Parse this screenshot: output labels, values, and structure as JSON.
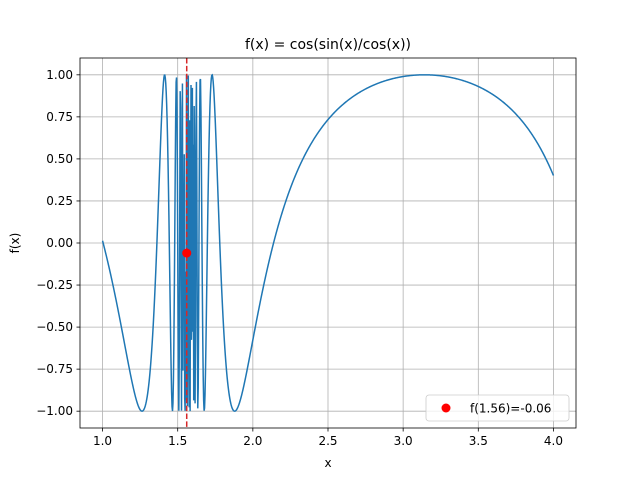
{
  "chart_data": {
    "type": "line",
    "title": "f(x) = cos(sin(x)/cos(x))",
    "xlabel": "x",
    "ylabel": "f(x)",
    "xlim": [
      0.85,
      4.15
    ],
    "ylim": [
      -1.1,
      1.1
    ],
    "grid": true,
    "x_ticks": [
      1.0,
      1.5,
      2.0,
      2.5,
      3.0,
      3.5,
      4.0
    ],
    "x_tick_labels": [
      "1.0",
      "1.5",
      "2.0",
      "2.5",
      "3.0",
      "3.5",
      "4.0"
    ],
    "y_ticks": [
      -1.0,
      -0.75,
      -0.5,
      -0.25,
      0.0,
      0.25,
      0.5,
      0.75,
      1.0
    ],
    "y_tick_labels": [
      "−1.00",
      "−0.75",
      "−0.50",
      "−0.25",
      "0.00",
      "0.25",
      "0.50",
      "0.75",
      "1.00"
    ],
    "series": [
      {
        "name": "cos(sin(x)/cos(x))",
        "function": "cos(tan(x))",
        "x_range": [
          1.0,
          4.0
        ],
        "samples": 1000,
        "color": "#1f77b4"
      }
    ],
    "vline": {
      "x": 1.56,
      "color": "#d62728",
      "style": "dashed"
    },
    "marker": {
      "x": 1.56,
      "y": -0.06,
      "color": "#ff0000"
    },
    "legend": {
      "position": "lower-right",
      "entries": [
        "f(1.56)=-0.06"
      ]
    }
  }
}
